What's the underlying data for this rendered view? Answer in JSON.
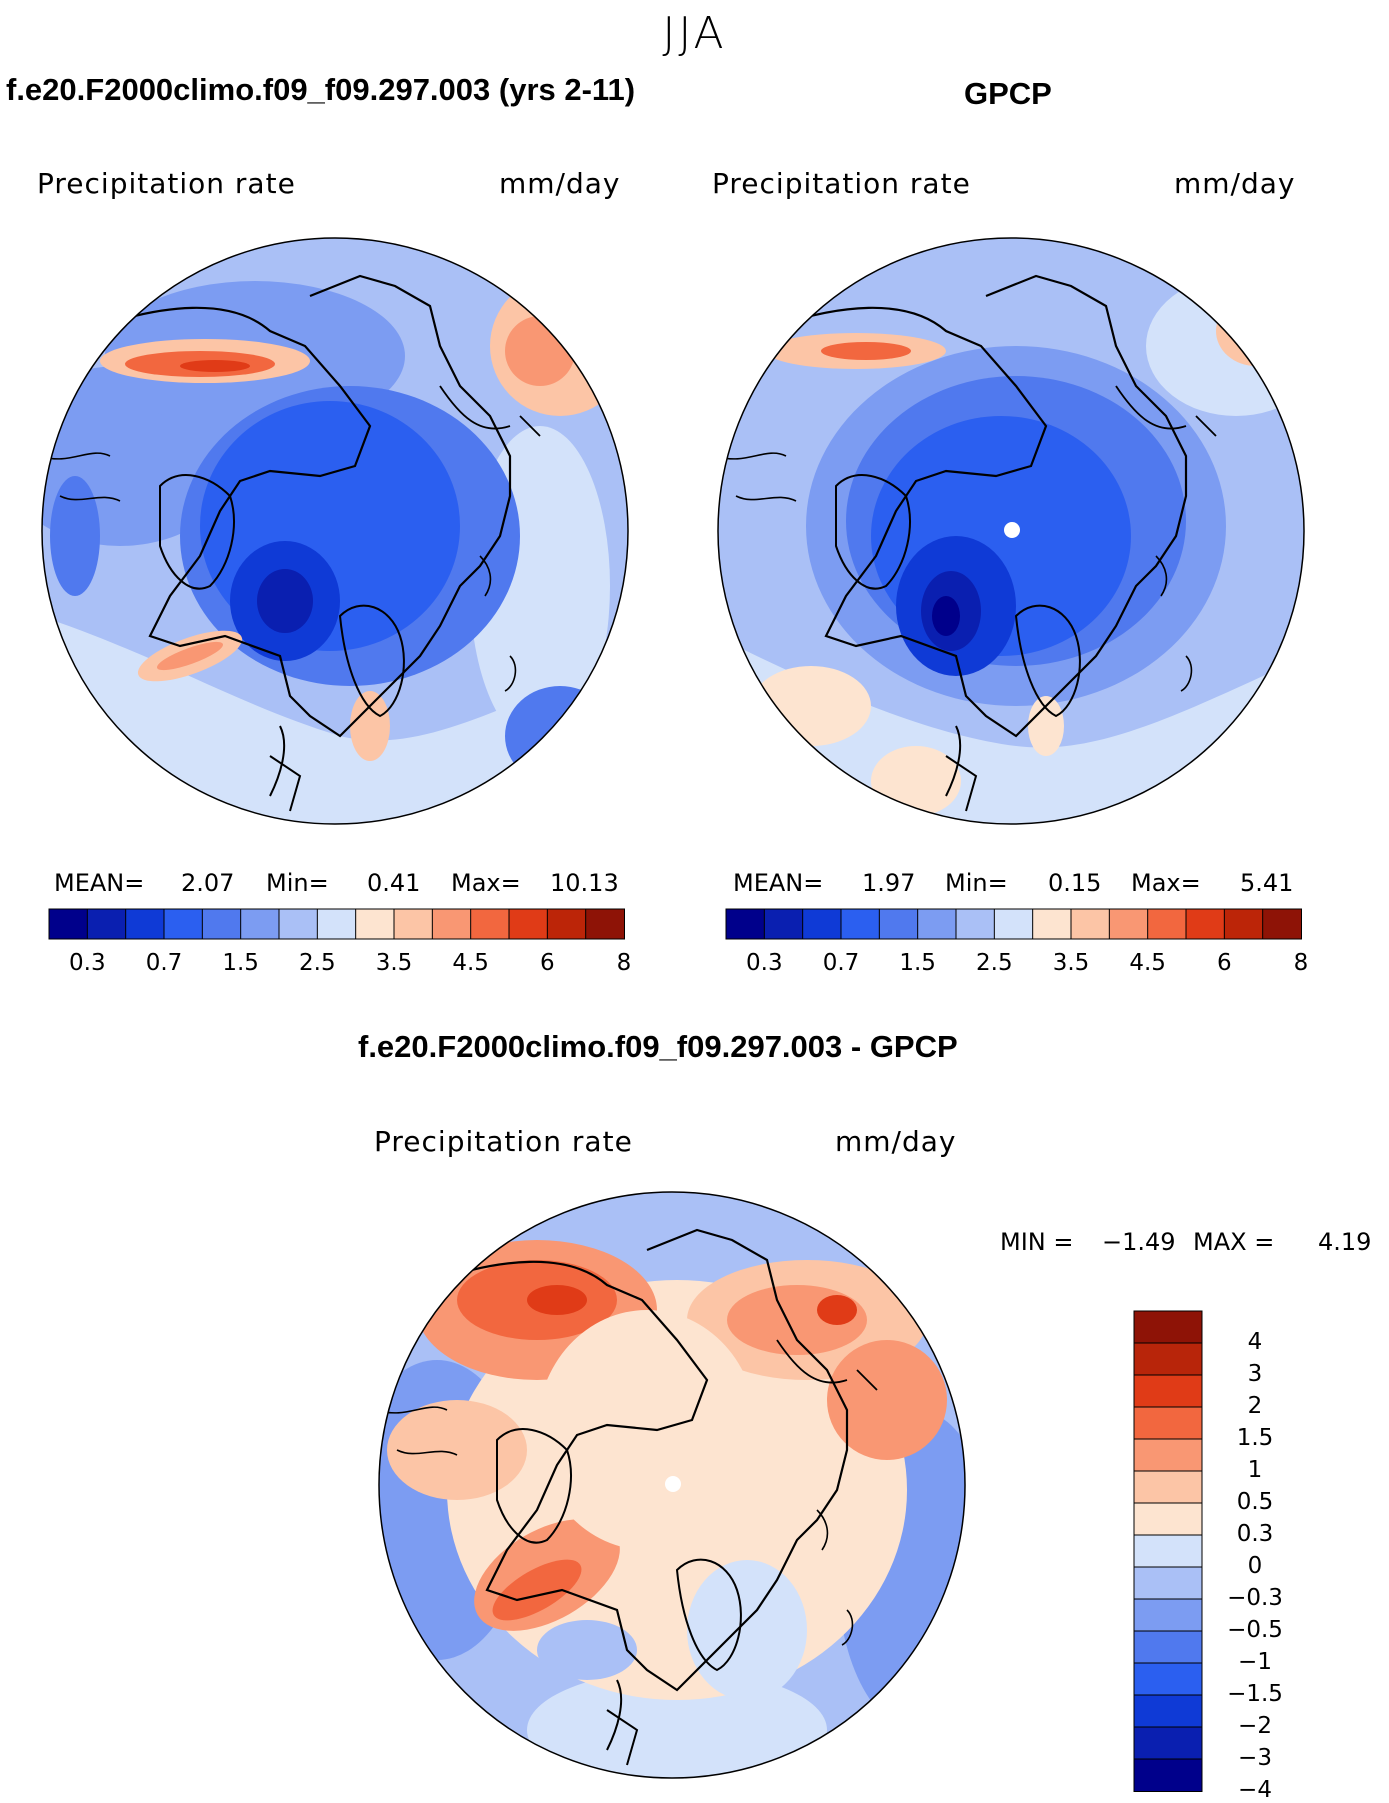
{
  "figure": {
    "season": "JJA",
    "panels": [
      {
        "id": "model",
        "title": "f.e20.F2000climo.f09_f09.297.003 (yrs 2-11)",
        "variable": "Precipitation  rate",
        "units": "mm/day",
        "mean_label": "MEAN=",
        "mean": "2.07",
        "min_label": "Min=",
        "min": "0.41",
        "max_label": "Max=",
        "max": "10.13"
      },
      {
        "id": "obs",
        "title": "GPCP",
        "variable": "Precipitation  rate",
        "units": "mm/day",
        "mean_label": "MEAN=",
        "mean": "1.97",
        "min_label": "Min=",
        "min": "0.15",
        "max_label": "Max=",
        "max": "5.41"
      }
    ],
    "difference": {
      "title": "f.e20.F2000climo.f09_f09.297.003 - GPCP",
      "variable": "Precipitation  rate",
      "units": "mm/day",
      "min_label": "MIN =",
      "min": "−1.49",
      "max_label": "MAX =",
      "max": "4.19"
    }
  },
  "colorbar_abs": {
    "colors": [
      "#00008b",
      "#0a1fb0",
      "#0f3ad6",
      "#2b5ff0",
      "#5079ee",
      "#7c9cf2",
      "#aac0f6",
      "#d3e2fa",
      "#fde4d0",
      "#fcc5a6",
      "#f99773",
      "#f2673f",
      "#e03b17",
      "#bc2508",
      "#8e1306"
    ],
    "tick_labels": [
      "0.3",
      "0.7",
      "1.5",
      "2.5",
      "3.5",
      "4.5",
      "6",
      "8"
    ]
  },
  "colorbar_diff": {
    "colors": [
      "#8e1306",
      "#b8250a",
      "#e03b17",
      "#f2673f",
      "#f99773",
      "#fcc5a6",
      "#fde4d0",
      "#d3e2fa",
      "#aac0f6",
      "#7c9cf2",
      "#5079ee",
      "#2b5ff0",
      "#0f3ad6",
      "#0a1fb0",
      "#00008b"
    ],
    "tick_labels": [
      "4",
      "3",
      "2",
      "1.5",
      "1",
      "0.5",
      "0.3",
      "0",
      "−0.3",
      "−0.5",
      "−1",
      "−1.5",
      "−2",
      "−3",
      "−4"
    ]
  }
}
